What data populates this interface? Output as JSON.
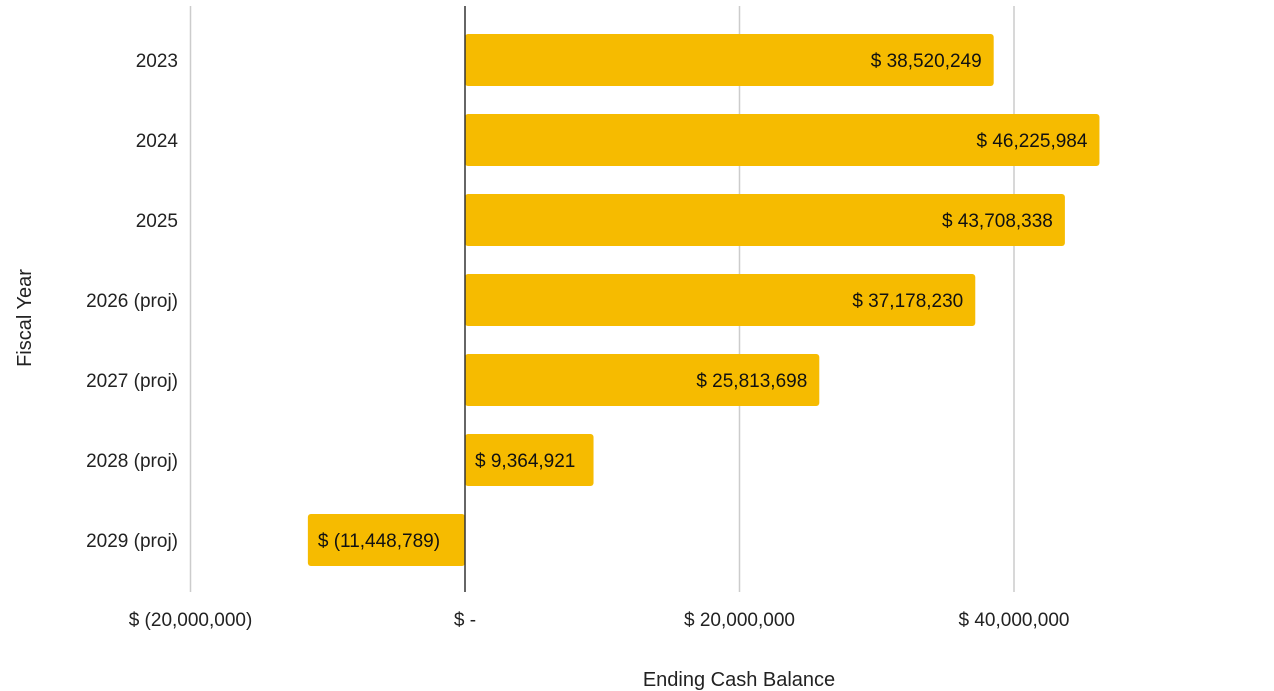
{
  "chart_data": {
    "type": "bar",
    "orientation": "horizontal",
    "xlabel": "Ending Cash Balance",
    "ylabel": "Fiscal Year",
    "categories": [
      "2023",
      "2024",
      "2025",
      "2026 (proj)",
      "2027 (proj)",
      "2028 (proj)",
      "2029 (proj)"
    ],
    "values": [
      38520249,
      46225984,
      43708338,
      37178230,
      25813698,
      9364921,
      -11448789
    ],
    "data_labels": [
      "$ 38,520,249",
      "$ 46,225,984",
      "$ 43,708,338",
      "$ 37,178,230",
      "$ 25,813,698",
      "$ 9,364,921",
      "$ (11,448,789)"
    ],
    "x_ticks": [
      -20000000,
      0,
      20000000,
      40000000
    ],
    "x_tick_labels": [
      "$ (20,000,000)",
      "$ -",
      "$ 20,000,000",
      "$ 40,000,000"
    ],
    "xlim": [
      -20000000,
      57000000
    ],
    "grid": true,
    "bar_color": "#F6BB00",
    "zero_line_color": "#333333",
    "grid_color": "#CCCCCC"
  }
}
